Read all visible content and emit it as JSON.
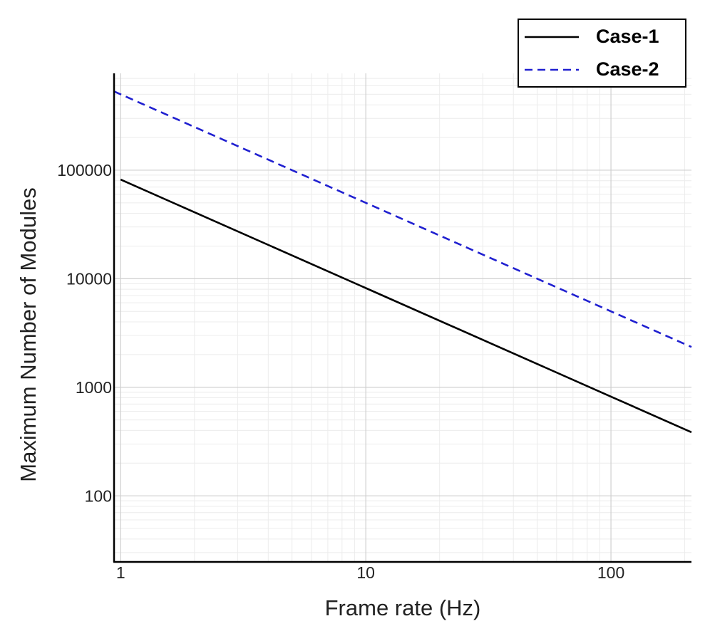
{
  "chart_data": {
    "type": "line",
    "xlabel": "Frame rate (Hz)",
    "ylabel": "Maximum Number of Modules",
    "x": [
      0.94,
      1,
      10,
      100,
      213
    ],
    "series": [
      {
        "name": "Case-1",
        "color": "#000000",
        "dash": "solid",
        "values": [
          null,
          82000,
          8200,
          820,
          385
        ]
      },
      {
        "name": "Case-2",
        "color": "#2020d0",
        "dash": "dashed",
        "values": [
          532000,
          500000,
          50000,
          5000,
          2350
        ]
      }
    ],
    "xlim": [
      0.94,
      213
    ],
    "ylim": [
      24.6,
      780000
    ],
    "xticks": [
      1,
      10,
      100
    ],
    "yticks": [
      100,
      1000,
      10000,
      100000
    ],
    "xscale": "log",
    "yscale": "log",
    "grid": true,
    "minor_grid": true,
    "legend": "upper right"
  }
}
